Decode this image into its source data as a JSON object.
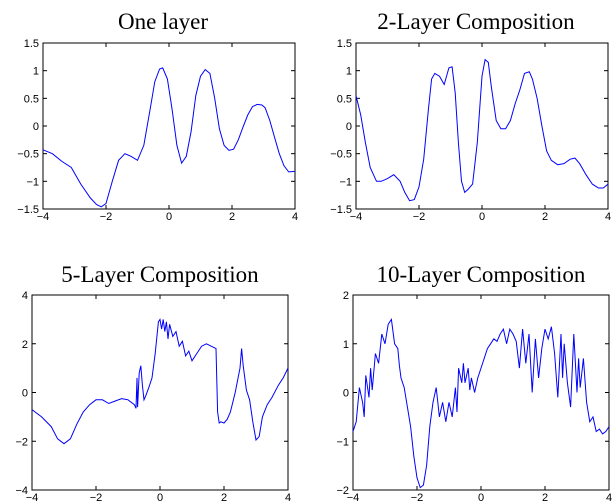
{
  "figure": {
    "colors": {
      "line": "#0000ff",
      "axes": "#000000",
      "background": "#ffffff"
    }
  },
  "chart_data": [
    {
      "type": "line",
      "title": "One layer",
      "xlim": [
        -4,
        4
      ],
      "ylim": [
        -1.5,
        1.5
      ],
      "xticks": [
        -4,
        -2,
        0,
        2,
        4
      ],
      "xtick_labels": [
        "−4",
        "−2",
        "0",
        "2",
        "4"
      ],
      "yticks": [
        -1.5,
        -1,
        -0.5,
        0,
        0.5,
        1,
        1.5
      ],
      "ytick_labels": [
        "−1.5",
        "−1",
        "−0.5",
        "0",
        "0.5",
        "1",
        "1.5"
      ],
      "grid": false,
      "series": [
        {
          "color": "#0000ff",
          "x": [
            -4,
            -3.7,
            -3.4,
            -3.1,
            -2.8,
            -2.5,
            -2.3,
            -2.15,
            -2.0,
            -1.8,
            -1.6,
            -1.4,
            -1.2,
            -1.0,
            -0.8,
            -0.6,
            -0.45,
            -0.3,
            -0.2,
            -0.05,
            0.1,
            0.25,
            0.4,
            0.55,
            0.7,
            0.85,
            1.0,
            1.15,
            1.3,
            1.45,
            1.6,
            1.75,
            1.9,
            2.05,
            2.2,
            2.35,
            2.5,
            2.65,
            2.8,
            2.95,
            3.05,
            3.2,
            3.35,
            3.5,
            3.65,
            3.8,
            4.0
          ],
          "y": [
            -0.43,
            -0.5,
            -0.64,
            -0.75,
            -1.05,
            -1.3,
            -1.42,
            -1.46,
            -1.4,
            -1.0,
            -0.62,
            -0.5,
            -0.55,
            -0.62,
            -0.35,
            0.3,
            0.8,
            1.03,
            1.05,
            0.85,
            0.3,
            -0.35,
            -0.67,
            -0.55,
            -0.1,
            0.55,
            0.9,
            1.02,
            0.95,
            0.5,
            -0.05,
            -0.35,
            -0.44,
            -0.42,
            -0.25,
            -0.02,
            0.2,
            0.35,
            0.39,
            0.38,
            0.33,
            0.1,
            -0.2,
            -0.5,
            -0.72,
            -0.83,
            -0.82
          ]
        }
      ]
    },
    {
      "type": "line",
      "title": "2-Layer Composition",
      "xlim": [
        -4,
        4
      ],
      "ylim": [
        -1.5,
        1.5
      ],
      "xticks": [
        -4,
        -2,
        0,
        2,
        4
      ],
      "xtick_labels": [
        "−4",
        "−2",
        "0",
        "2",
        "4"
      ],
      "yticks": [
        -1.5,
        -1,
        -0.5,
        0,
        0.5,
        1,
        1.5
      ],
      "ytick_labels": [
        "−1.5",
        "−1",
        "−0.5",
        "0",
        "0.5",
        "1",
        "1.5"
      ],
      "grid": false,
      "series": [
        {
          "color": "#0000ff",
          "x": [
            -4,
            -3.85,
            -3.7,
            -3.55,
            -3.35,
            -3.2,
            -3.0,
            -2.8,
            -2.6,
            -2.45,
            -2.3,
            -2.15,
            -2.0,
            -1.85,
            -1.7,
            -1.6,
            -1.5,
            -1.35,
            -1.2,
            -1.05,
            -0.95,
            -0.85,
            -0.75,
            -0.65,
            -0.55,
            -0.45,
            -0.3,
            -0.15,
            0.0,
            0.1,
            0.2,
            0.3,
            0.45,
            0.6,
            0.75,
            0.9,
            1.05,
            1.2,
            1.35,
            1.5,
            1.6,
            1.75,
            1.9,
            2.05,
            2.2,
            2.4,
            2.6,
            2.8,
            2.95,
            3.1,
            3.3,
            3.5,
            3.7,
            3.85,
            4.0
          ],
          "y": [
            0.55,
            0.2,
            -0.3,
            -0.75,
            -1.0,
            -1.0,
            -0.95,
            -0.88,
            -1.0,
            -1.2,
            -1.35,
            -1.33,
            -1.1,
            -0.6,
            0.3,
            0.85,
            0.95,
            0.9,
            0.75,
            1.05,
            1.07,
            0.6,
            -0.3,
            -1.0,
            -1.2,
            -1.15,
            -1.05,
            -0.3,
            0.9,
            1.2,
            1.15,
            0.7,
            0.1,
            -0.05,
            -0.05,
            0.1,
            0.4,
            0.65,
            0.95,
            0.98,
            0.85,
            0.5,
            0.0,
            -0.45,
            -0.62,
            -0.7,
            -0.68,
            -0.6,
            -0.58,
            -0.68,
            -0.88,
            -1.05,
            -1.12,
            -1.12,
            -1.05
          ]
        }
      ]
    },
    {
      "type": "line",
      "title": "5-Layer Composition",
      "xlim": [
        -4,
        4
      ],
      "ylim": [
        -4,
        4
      ],
      "xticks": [
        -4,
        -2,
        0,
        2,
        4
      ],
      "xtick_labels": [
        "−4",
        "−2",
        "0",
        "2",
        "4"
      ],
      "yticks": [
        -4,
        -2,
        0,
        2,
        4
      ],
      "ytick_labels": [
        "−4",
        "−2",
        "0",
        "2",
        "4"
      ],
      "grid": false,
      "series": [
        {
          "color": "#0000ff",
          "x": [
            -4,
            -3.7,
            -3.4,
            -3.2,
            -3.0,
            -2.8,
            -2.6,
            -2.4,
            -2.2,
            -2.0,
            -1.8,
            -1.6,
            -1.4,
            -1.2,
            -1.0,
            -0.8,
            -0.75,
            -0.72,
            -0.7,
            -0.65,
            -0.6,
            -0.55,
            -0.5,
            -0.45,
            -0.35,
            -0.25,
            -0.15,
            -0.05,
            0.0,
            0.05,
            0.1,
            0.15,
            0.2,
            0.25,
            0.3,
            0.4,
            0.5,
            0.6,
            0.7,
            0.8,
            0.9,
            1.0,
            1.15,
            1.3,
            1.45,
            1.6,
            1.75,
            1.8,
            1.85,
            1.9,
            2.0,
            2.1,
            2.2,
            2.35,
            2.5,
            2.55,
            2.6,
            2.7,
            2.8,
            2.9,
            3.0,
            3.1,
            3.2,
            3.35,
            3.5,
            3.7,
            3.85,
            4.0
          ],
          "y": [
            -0.7,
            -1.0,
            -1.4,
            -1.9,
            -2.1,
            -1.9,
            -1.3,
            -0.8,
            -0.5,
            -0.3,
            -0.3,
            -0.45,
            -0.35,
            -0.25,
            -0.3,
            -0.5,
            -0.65,
            0.6,
            -0.6,
            0.8,
            1.1,
            0.3,
            -0.3,
            -0.15,
            0.2,
            0.6,
            1.6,
            2.9,
            3.0,
            2.6,
            3.0,
            2.5,
            2.9,
            2.2,
            2.8,
            2.3,
            2.5,
            1.9,
            2.1,
            1.5,
            1.7,
            1.3,
            1.6,
            1.9,
            2.0,
            1.9,
            1.8,
            -0.8,
            -1.25,
            -1.2,
            -1.25,
            -1.1,
            -0.8,
            0.0,
            1.0,
            1.8,
            1.1,
            0.1,
            -0.3,
            -1.2,
            -1.95,
            -1.8,
            -1.0,
            -0.5,
            -0.2,
            0.3,
            0.6,
            1.0
          ]
        }
      ]
    },
    {
      "type": "line",
      "title": "10-Layer Composition",
      "xlim": [
        -4,
        4
      ],
      "ylim": [
        -2,
        2
      ],
      "xticks": [
        -4,
        -2,
        0,
        2,
        4
      ],
      "xtick_labels": [
        "−4",
        "−2",
        "0",
        "2",
        "4"
      ],
      "yticks": [
        -2,
        -1,
        0,
        1,
        2
      ],
      "ytick_labels": [
        "−2",
        "−1",
        "0",
        "1",
        "2"
      ],
      "grid": false,
      "series": [
        {
          "color": "#0000ff",
          "x": [
            -4,
            -3.9,
            -3.8,
            -3.7,
            -3.65,
            -3.6,
            -3.5,
            -3.45,
            -3.4,
            -3.3,
            -3.2,
            -3.1,
            -3.0,
            -2.9,
            -2.8,
            -2.7,
            -2.6,
            -2.55,
            -2.5,
            -2.4,
            -2.3,
            -2.2,
            -2.1,
            -2.0,
            -1.9,
            -1.8,
            -1.7,
            -1.6,
            -1.5,
            -1.4,
            -1.3,
            -1.2,
            -1.1,
            -1.0,
            -0.9,
            -0.8,
            -0.75,
            -0.7,
            -0.6,
            -0.55,
            -0.5,
            -0.4,
            -0.35,
            -0.3,
            -0.2,
            -0.1,
            0.0,
            0.1,
            0.2,
            0.3,
            0.4,
            0.5,
            0.6,
            0.7,
            0.8,
            0.9,
            1.0,
            1.1,
            1.2,
            1.3,
            1.4,
            1.5,
            1.6,
            1.7,
            1.8,
            1.9,
            2.0,
            2.1,
            2.2,
            2.3,
            2.4,
            2.5,
            2.55,
            2.6,
            2.7,
            2.8,
            2.9,
            3.0,
            3.05,
            3.1,
            3.2,
            3.3,
            3.4,
            3.5,
            3.6,
            3.7,
            3.8,
            3.9,
            4.0
          ],
          "y": [
            -0.8,
            -0.6,
            0.1,
            -0.2,
            -0.5,
            0.35,
            -0.1,
            0.5,
            0.05,
            0.8,
            0.6,
            1.2,
            1.0,
            1.4,
            1.5,
            1.0,
            0.9,
            0.55,
            0.3,
            0.1,
            -0.3,
            -0.7,
            -1.3,
            -1.75,
            -1.95,
            -1.9,
            -1.5,
            -0.7,
            -0.2,
            0.1,
            -0.5,
            -0.2,
            -0.6,
            -0.2,
            -0.5,
            0.1,
            -0.4,
            0.5,
            0.2,
            0.6,
            0.2,
            0.5,
            0.05,
            0.3,
            0.0,
            0.3,
            0.5,
            0.7,
            0.9,
            1.0,
            1.1,
            1.05,
            1.2,
            1.3,
            1.0,
            1.3,
            1.2,
            1.05,
            0.5,
            1.3,
            0.6,
            1.2,
            0.0,
            1.1,
            0.3,
            0.9,
            1.3,
            1.1,
            1.35,
            0.8,
            -0.1,
            1.2,
            0.3,
            1.0,
            0.2,
            -0.3,
            1.2,
            0.0,
            0.7,
            0.1,
            0.7,
            -0.2,
            -0.6,
            -0.5,
            -0.8,
            -0.75,
            -0.85,
            -0.8,
            -0.7
          ]
        }
      ]
    }
  ]
}
